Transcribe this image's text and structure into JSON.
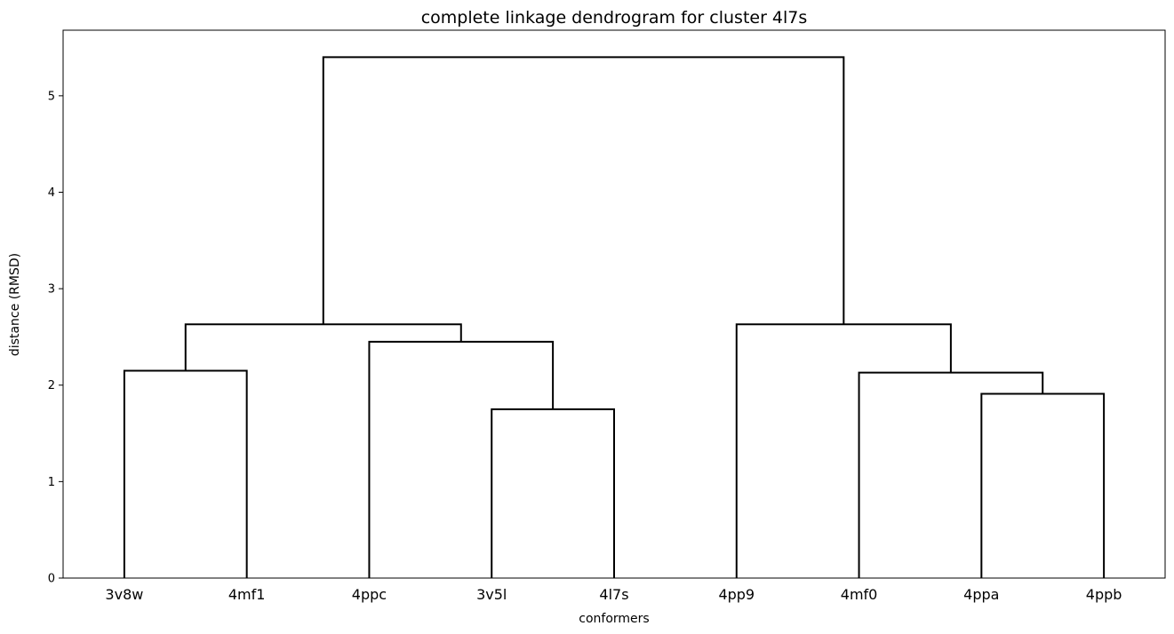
{
  "chart_data": {
    "type": "dendrogram",
    "title": "complete linkage dendrogram for cluster 4l7s",
    "xlabel": "conformers",
    "ylabel": "distance (RMSD)",
    "leaves": [
      "3v8w",
      "4mf1",
      "4ppc",
      "3v5l",
      "4l7s",
      "4pp9",
      "4mf0",
      "4ppa",
      "4ppb"
    ],
    "ylim": [
      0,
      5.68
    ],
    "yticks": [
      0,
      1,
      2,
      3,
      4,
      5
    ],
    "links": [
      {
        "left": "leaf:3v8w",
        "right": "leaf:4mf1",
        "height": 2.15
      },
      {
        "left": "leaf:3v5l",
        "right": "leaf:4l7s",
        "height": 1.75
      },
      {
        "left": "leaf:4ppc",
        "right": "link:1",
        "height": 2.45
      },
      {
        "left": "link:0",
        "right": "link:2",
        "height": 2.63
      },
      {
        "left": "leaf:4ppa",
        "right": "leaf:4ppb",
        "height": 1.91
      },
      {
        "left": "leaf:4mf0",
        "right": "link:4",
        "height": 2.13
      },
      {
        "left": "leaf:4pp9",
        "right": "link:5",
        "height": 2.63
      },
      {
        "left": "link:3",
        "right": "link:6",
        "height": 5.4
      }
    ],
    "line_color": "#000000",
    "grid": false,
    "legend": "none"
  }
}
